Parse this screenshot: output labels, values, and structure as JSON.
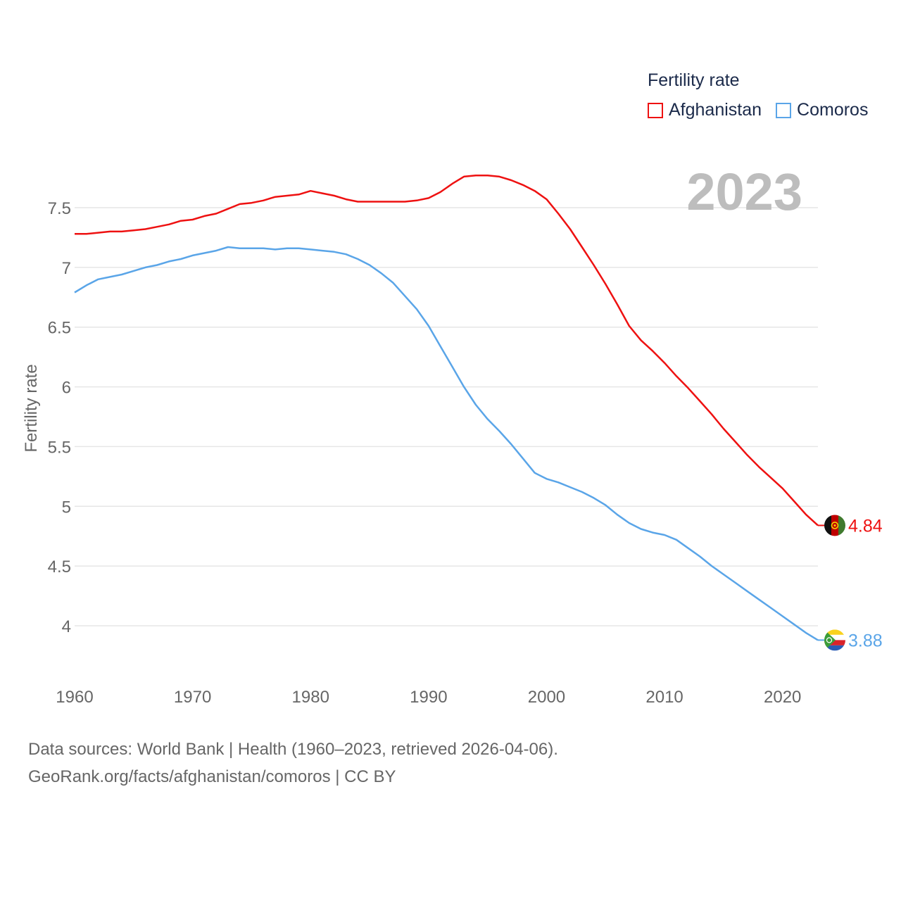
{
  "legend": {
    "title": "Fertility rate",
    "items": [
      {
        "name": "Afghanistan",
        "color": "#ee1111"
      },
      {
        "name": "Comoros",
        "color": "#5aa5e8"
      }
    ]
  },
  "year_label": "2023",
  "footer": {
    "line1": "Data sources: World Bank | Health (1960–2023, retrieved 2026-04-06).",
    "line2": "GeoRank.org/facts/afghanistan/comoros | CC BY"
  },
  "chart_data": {
    "type": "line",
    "title": "Fertility rate",
    "xlabel": "",
    "ylabel": "Fertility rate",
    "xlim": [
      1960,
      2023
    ],
    "ylim": [
      3.75,
      7.85
    ],
    "y_ticks": [
      4,
      4.5,
      5,
      5.5,
      6,
      6.5,
      7,
      7.5
    ],
    "y_tick_labels": [
      "4",
      "4.5",
      "5",
      "5.5",
      "6",
      "6.5",
      "7",
      "7.5"
    ],
    "x_ticks": [
      1960,
      1970,
      1980,
      1990,
      2000,
      2010,
      2020
    ],
    "x_tick_labels": [
      "1960",
      "1970",
      "1980",
      "1990",
      "2000",
      "2010",
      "2020"
    ],
    "grid": true,
    "x": [
      1960,
      1961,
      1962,
      1963,
      1964,
      1965,
      1966,
      1967,
      1968,
      1969,
      1970,
      1971,
      1972,
      1973,
      1974,
      1975,
      1976,
      1977,
      1978,
      1979,
      1980,
      1981,
      1982,
      1983,
      1984,
      1985,
      1986,
      1987,
      1988,
      1989,
      1990,
      1991,
      1992,
      1993,
      1994,
      1995,
      1996,
      1997,
      1998,
      1999,
      2000,
      2001,
      2002,
      2003,
      2004,
      2005,
      2006,
      2007,
      2008,
      2009,
      2010,
      2011,
      2012,
      2013,
      2014,
      2015,
      2016,
      2017,
      2018,
      2019,
      2020,
      2021,
      2022,
      2023
    ],
    "series": [
      {
        "name": "Afghanistan",
        "color": "#ee1111",
        "end_label": "4.84",
        "values": [
          7.28,
          7.28,
          7.29,
          7.3,
          7.3,
          7.31,
          7.32,
          7.34,
          7.36,
          7.39,
          7.4,
          7.43,
          7.45,
          7.49,
          7.53,
          7.54,
          7.56,
          7.59,
          7.6,
          7.61,
          7.64,
          7.62,
          7.6,
          7.57,
          7.55,
          7.55,
          7.55,
          7.55,
          7.55,
          7.56,
          7.58,
          7.63,
          7.7,
          7.76,
          7.77,
          7.77,
          7.76,
          7.73,
          7.69,
          7.64,
          7.57,
          7.45,
          7.32,
          7.17,
          7.02,
          6.86,
          6.69,
          6.51,
          6.39,
          6.3,
          6.2,
          6.09,
          5.99,
          5.88,
          5.77,
          5.65,
          5.54,
          5.43,
          5.33,
          5.24,
          5.15,
          5.04,
          4.93,
          4.84
        ]
      },
      {
        "name": "Comoros",
        "color": "#5aa5e8",
        "end_label": "3.88",
        "values": [
          6.79,
          6.85,
          6.9,
          6.92,
          6.94,
          6.97,
          7.0,
          7.02,
          7.05,
          7.07,
          7.1,
          7.12,
          7.14,
          7.17,
          7.16,
          7.16,
          7.16,
          7.15,
          7.16,
          7.16,
          7.15,
          7.14,
          7.13,
          7.11,
          7.07,
          7.02,
          6.95,
          6.87,
          6.76,
          6.65,
          6.51,
          6.34,
          6.17,
          6.0,
          5.85,
          5.73,
          5.63,
          5.52,
          5.4,
          5.28,
          5.23,
          5.2,
          5.16,
          5.12,
          5.07,
          5.01,
          4.93,
          4.86,
          4.81,
          4.78,
          4.76,
          4.72,
          4.65,
          4.58,
          4.5,
          4.43,
          4.36,
          4.29,
          4.22,
          4.15,
          4.08,
          4.01,
          3.94,
          3.88
        ]
      }
    ]
  }
}
